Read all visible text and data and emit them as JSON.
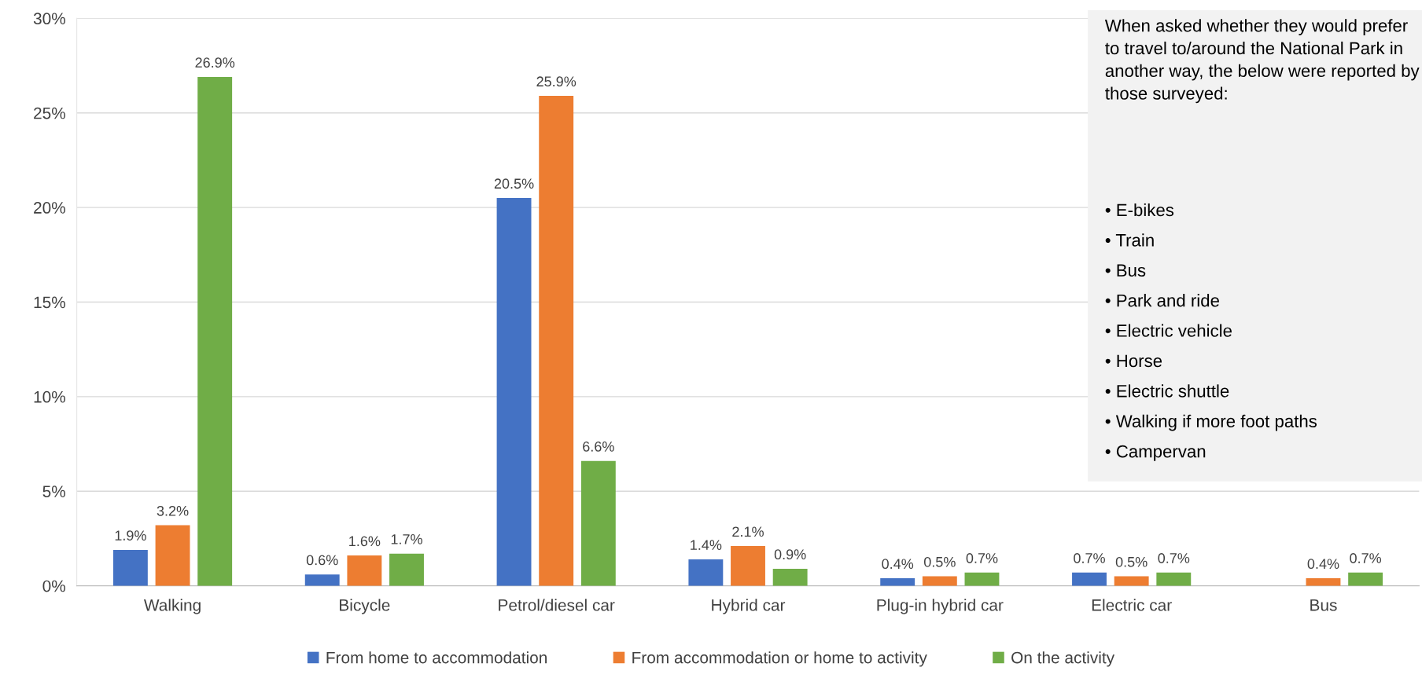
{
  "chart_data": {
    "type": "bar",
    "categories": [
      "Walking",
      "Bicycle",
      "Petrol/diesel car",
      "Hybrid car",
      "Plug-in hybrid car",
      "Electric car",
      "Bus"
    ],
    "series": [
      {
        "name": "From home to accommodation",
        "color": "#4472c4",
        "values": [
          1.9,
          0.6,
          20.5,
          1.4,
          0.4,
          0.7,
          null
        ],
        "value_labels": [
          "1.9%",
          "0.6%",
          "20.5%",
          "1.4%",
          "0.4%",
          "0.7%",
          null
        ]
      },
      {
        "name": "From accommodation or home to activity",
        "color": "#ed7d31",
        "values": [
          3.2,
          1.6,
          25.9,
          2.1,
          0.5,
          0.5,
          0.4
        ],
        "value_labels": [
          "3.2%",
          "1.6%",
          "25.9%",
          "2.1%",
          "0.5%",
          "0.5%",
          "0.4%"
        ]
      },
      {
        "name": "On the activity",
        "color": "#70ad47",
        "values": [
          26.9,
          1.7,
          6.6,
          0.9,
          0.7,
          0.7,
          0.7
        ],
        "value_labels": [
          "26.9%",
          "1.7%",
          "6.6%",
          "0.9%",
          "0.7%",
          "0.7%",
          "0.7%"
        ]
      }
    ],
    "ylim": [
      0,
      30
    ],
    "yticks": [
      {
        "value": 0,
        "label": "0%"
      },
      {
        "value": 5,
        "label": "5%"
      },
      {
        "value": 10,
        "label": "10%"
      },
      {
        "value": 15,
        "label": "15%"
      },
      {
        "value": 20,
        "label": "20%"
      },
      {
        "value": 25,
        "label": "25%"
      },
      {
        "value": 30,
        "label": "30%"
      }
    ],
    "grid": "y",
    "legend": "bottom",
    "annotations": [
      "When asked whether they would prefer to travel to/around the National Park in another way, the below were reported by those surveyed:",
      "• E-bikes",
      "• Train",
      "• Bus",
      "• Park and ride",
      "• Electric vehicle",
      "• Horse",
      "• Electric shuttle",
      "• Walking if more foot paths",
      "• Campervan"
    ]
  }
}
